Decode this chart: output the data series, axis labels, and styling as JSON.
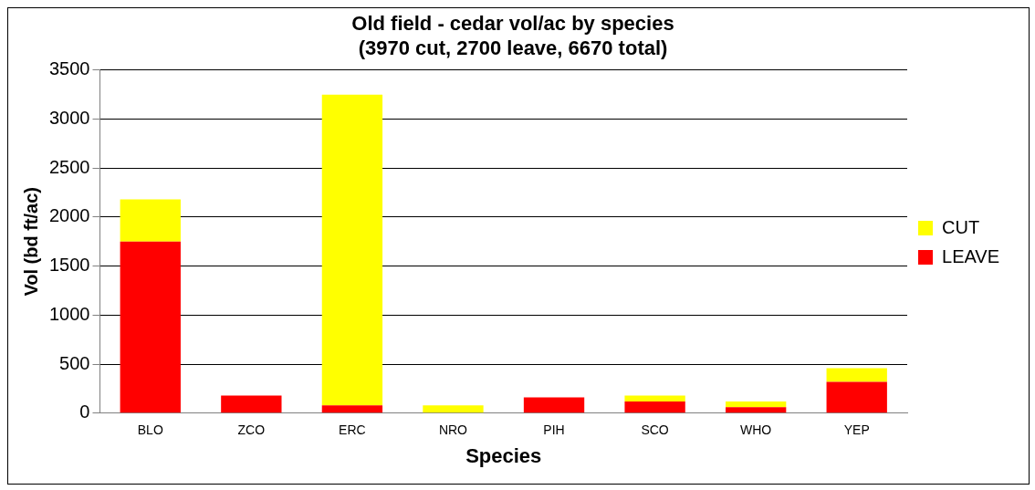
{
  "chart_data": {
    "type": "bar",
    "title": "Old field - cedar vol/ac by species\n(3970 cut, 2700 leave, 6670 total)",
    "xlabel": "Species",
    "ylabel": "Vol (bd ft/ac)",
    "categories": [
      "BLO",
      "ZCO",
      "ERC",
      "NRO",
      "PIH",
      "SCO",
      "WHO",
      "YEP"
    ],
    "series": [
      {
        "name": "LEAVE",
        "color": "#ff0000",
        "values": [
          1750,
          180,
          80,
          0,
          160,
          120,
          60,
          320
        ]
      },
      {
        "name": "CUT",
        "color": "#ffff00",
        "values": [
          430,
          0,
          3170,
          80,
          0,
          60,
          60,
          140
        ]
      }
    ],
    "stacked": true,
    "ylim": [
      0,
      3500
    ],
    "yticks": [
      0,
      500,
      1000,
      1500,
      2000,
      2500,
      3000,
      3500
    ],
    "grid": "y",
    "legend": "right"
  }
}
